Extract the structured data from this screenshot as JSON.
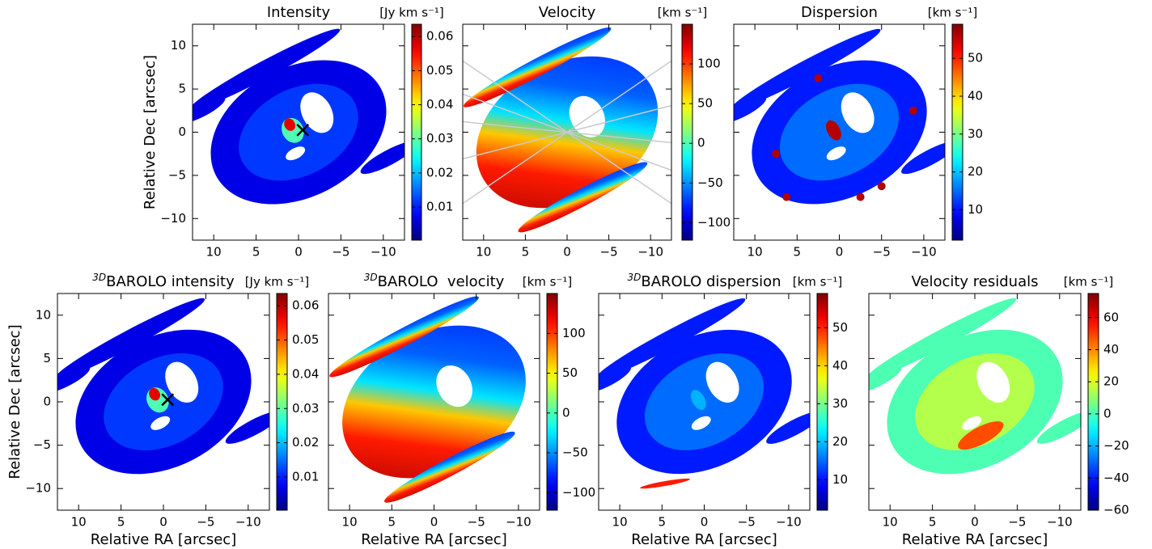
{
  "chart_data": [
    {
      "type": "heatmap",
      "title": "Intensity",
      "colorbar_label": "[Jy km s⁻¹]",
      "colormap": "jet",
      "ylabel": "Relative Dec [arcsec]",
      "xlim": [
        12.5,
        -12.5
      ],
      "ylim": [
        -12.5,
        12.5
      ],
      "xticks": [
        10,
        5,
        0,
        {
          "value": -5,
          "label": "−5"
        },
        {
          "value": -10,
          "label": "−10"
        }
      ],
      "yticks": [
        {
          "value": -10,
          "label": "−10"
        },
        {
          "value": -5,
          "label": "−5"
        },
        0,
        5,
        10
      ],
      "clim": [
        0.0003,
        0.0636
      ],
      "cticks": [
        0.01,
        0.02,
        0.03,
        0.04,
        0.05,
        0.06
      ]
    },
    {
      "type": "heatmap",
      "title": "Velocity",
      "colorbar_label": "[km s⁻¹]",
      "colormap": "jet",
      "xlim": [
        12.5,
        -12.5
      ],
      "ylim": [
        -12.5,
        12.5
      ],
      "xticks": [
        10,
        5,
        0,
        {
          "value": -5,
          "label": "−5"
        },
        {
          "value": -10,
          "label": "−10"
        }
      ],
      "yticks": [
        -10,
        -5,
        0,
        5,
        10
      ],
      "clim": [
        -122,
        150
      ],
      "cticks": [
        {
          "value": -100,
          "label": "−100"
        },
        {
          "value": -50,
          "label": "−50"
        },
        0,
        50,
        100
      ]
    },
    {
      "type": "heatmap",
      "title": "Dispersion",
      "colorbar_label": "[km s⁻¹]",
      "colormap": "jet",
      "xlim": [
        12.5,
        -12.5
      ],
      "ylim": [
        -12.5,
        12.5
      ],
      "xticks": [
        10,
        5,
        0,
        {
          "value": -5,
          "label": "−5"
        },
        {
          "value": -10,
          "label": "−10"
        }
      ],
      "yticks": [
        -10,
        -5,
        0,
        5,
        10
      ],
      "clim": [
        2,
        59
      ],
      "cticks": [
        10,
        20,
        30,
        40,
        50
      ]
    },
    {
      "type": "heatmap",
      "title_prefix": "3D",
      "title": "BAROLO intensity",
      "colorbar_label": "[Jy km s⁻¹]",
      "colormap": "jet",
      "xlabel": "Relative RA [arcsec]",
      "ylabel": "Relative Dec [arcsec]",
      "xlim": [
        12.5,
        -12.5
      ],
      "ylim": [
        -12.5,
        12.5
      ],
      "xticks": [
        10,
        5,
        0,
        {
          "value": -5,
          "label": "−5"
        },
        {
          "value": -10,
          "label": "−10"
        }
      ],
      "yticks": [
        {
          "value": -10,
          "label": "−10"
        },
        {
          "value": -5,
          "label": "−5"
        },
        0,
        5,
        10
      ],
      "clim": [
        0.0003,
        0.0636
      ],
      "cticks": [
        0.01,
        0.02,
        0.03,
        0.04,
        0.05,
        0.06
      ]
    },
    {
      "type": "heatmap",
      "title_prefix": "3D",
      "title": "BAROLO  velocity",
      "colorbar_label": "[km s⁻¹]",
      "colormap": "jet",
      "xlabel": "Relative RA [arcsec]",
      "xlim": [
        12.5,
        -12.5
      ],
      "ylim": [
        -12.5,
        12.5
      ],
      "xticks": [
        10,
        5,
        0,
        {
          "value": -5,
          "label": "−5"
        },
        {
          "value": -10,
          "label": "−10"
        }
      ],
      "yticks": [
        -10,
        -5,
        0,
        5,
        10
      ],
      "clim": [
        -122,
        150
      ],
      "cticks": [
        {
          "value": -100,
          "label": "−100"
        },
        {
          "value": -50,
          "label": "−50"
        },
        0,
        50,
        100
      ]
    },
    {
      "type": "heatmap",
      "title_prefix": "3D",
      "title": "BAROLO dispersion",
      "colorbar_label": "[km s⁻¹]",
      "colormap": "jet",
      "xlabel": "Relative RA [arcsec]",
      "xlim": [
        12.5,
        -12.5
      ],
      "ylim": [
        -12.5,
        12.5
      ],
      "xticks": [
        10,
        5,
        0,
        {
          "value": -5,
          "label": "−5"
        },
        {
          "value": -10,
          "label": "−10"
        }
      ],
      "yticks": [
        -10,
        -5,
        0,
        5,
        10
      ],
      "clim": [
        2,
        59
      ],
      "cticks": [
        10,
        20,
        30,
        40,
        50
      ]
    },
    {
      "type": "heatmap",
      "title": "Velocity residuals",
      "colorbar_label": "[km s⁻¹]",
      "colormap": "jet",
      "xlabel": "Relative RA [arcsec]",
      "xlim": [
        12.5,
        -12.5
      ],
      "ylim": [
        -12.5,
        12.5
      ],
      "xticks": [
        10,
        5,
        0,
        {
          "value": -5,
          "label": "−5"
        },
        {
          "value": -10,
          "label": "−10"
        }
      ],
      "yticks": [
        -10,
        -5,
        0,
        5,
        10
      ],
      "clim": [
        -60,
        75
      ],
      "cticks": [
        {
          "value": -60,
          "label": "−60"
        },
        {
          "value": -40,
          "label": "−40"
        },
        {
          "value": -20,
          "label": "−20"
        },
        0,
        20,
        40,
        60
      ]
    }
  ]
}
